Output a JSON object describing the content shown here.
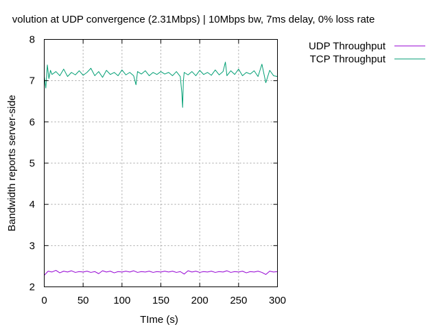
{
  "chart_data": {
    "type": "line",
    "title": "volution at UDP convergence (2.31Mbps) | 10Mbps bw, 7ms delay, 0% loss rate",
    "xlabel": "TIme (s)",
    "ylabel": "Bandwidth reports server-side",
    "xlim": [
      0,
      300
    ],
    "ylim": [
      2,
      8
    ],
    "xticks": [
      0,
      50,
      100,
      150,
      200,
      250,
      300
    ],
    "yticks": [
      2,
      3,
      4,
      5,
      6,
      7,
      8
    ],
    "grid": true,
    "legend_position": "outside-top-right",
    "series": [
      {
        "name": "UDP Throughput",
        "color": "#9400d3",
        "x": [
          0,
          5,
          10,
          15,
          20,
          25,
          30,
          35,
          40,
          45,
          50,
          55,
          60,
          65,
          70,
          75,
          80,
          85,
          90,
          95,
          100,
          105,
          110,
          115,
          120,
          125,
          130,
          135,
          140,
          145,
          150,
          155,
          160,
          165,
          170,
          175,
          180,
          185,
          190,
          195,
          200,
          205,
          210,
          215,
          220,
          225,
          230,
          235,
          240,
          245,
          250,
          255,
          260,
          265,
          270,
          275,
          280,
          285,
          290,
          295,
          300
        ],
        "y": [
          2.28,
          2.38,
          2.36,
          2.4,
          2.34,
          2.38,
          2.36,
          2.39,
          2.35,
          2.37,
          2.36,
          2.38,
          2.35,
          2.37,
          2.32,
          2.39,
          2.36,
          2.38,
          2.34,
          2.37,
          2.36,
          2.38,
          2.36,
          2.39,
          2.35,
          2.37,
          2.36,
          2.38,
          2.35,
          2.37,
          2.36,
          2.38,
          2.36,
          2.38,
          2.35,
          2.37,
          2.31,
          2.39,
          2.36,
          2.38,
          2.35,
          2.37,
          2.36,
          2.38,
          2.35,
          2.37,
          2.36,
          2.39,
          2.35,
          2.37,
          2.36,
          2.38,
          2.34,
          2.37,
          2.36,
          2.38,
          2.35,
          2.3,
          2.38,
          2.36,
          2.37
        ]
      },
      {
        "name": "TCP Throughput",
        "color": "#009e73",
        "x": [
          0,
          2,
          4,
          6,
          8,
          10,
          15,
          20,
          25,
          30,
          35,
          40,
          45,
          50,
          55,
          60,
          65,
          70,
          75,
          80,
          85,
          90,
          95,
          100,
          105,
          110,
          115,
          118,
          120,
          125,
          130,
          135,
          140,
          145,
          150,
          155,
          160,
          165,
          170,
          175,
          177,
          178,
          179,
          180,
          185,
          190,
          195,
          200,
          205,
          210,
          215,
          220,
          225,
          230,
          233,
          235,
          240,
          245,
          250,
          255,
          260,
          265,
          270,
          275,
          280,
          285,
          290,
          295,
          300
        ],
        "y": [
          7.1,
          6.82,
          7.38,
          7.05,
          7.25,
          7.15,
          7.22,
          7.12,
          7.28,
          7.1,
          7.2,
          7.14,
          7.24,
          7.13,
          7.2,
          7.3,
          7.12,
          7.22,
          7.08,
          7.25,
          7.15,
          7.2,
          7.12,
          7.26,
          7.14,
          7.2,
          7.12,
          6.9,
          7.22,
          7.16,
          7.24,
          7.12,
          7.2,
          7.15,
          7.22,
          7.16,
          7.2,
          7.12,
          7.22,
          7.1,
          6.7,
          6.35,
          7.0,
          7.2,
          7.14,
          7.22,
          7.12,
          7.25,
          7.15,
          7.2,
          7.13,
          7.26,
          7.14,
          7.22,
          7.45,
          7.12,
          7.24,
          7.15,
          7.28,
          7.12,
          7.2,
          7.16,
          7.24,
          7.1,
          7.4,
          6.95,
          7.25,
          7.12,
          7.1
        ]
      }
    ]
  }
}
